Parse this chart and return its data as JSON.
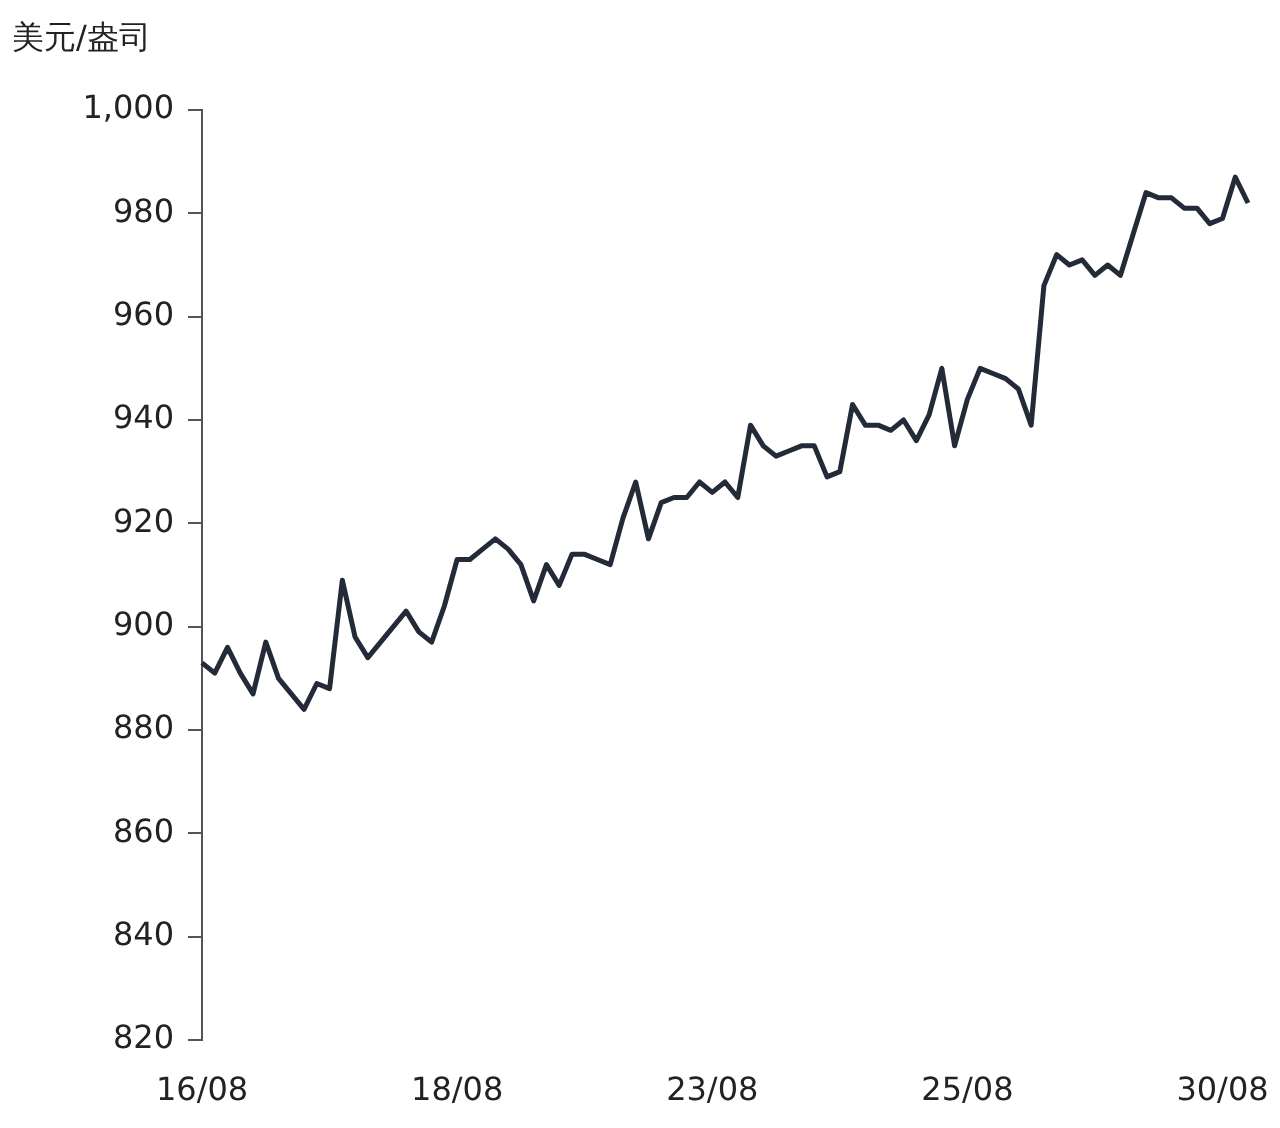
{
  "chart_data": {
    "type": "line",
    "ylabel": "美元/盎司",
    "categories": [
      "16/08",
      null,
      null,
      null,
      null,
      null,
      null,
      null,
      null,
      null,
      null,
      null,
      null,
      null,
      null,
      null,
      null,
      null,
      null,
      null,
      "18/08",
      null,
      null,
      null,
      null,
      null,
      null,
      null,
      null,
      null,
      null,
      null,
      null,
      null,
      null,
      null,
      null,
      null,
      null,
      null,
      "23/08",
      null,
      null,
      null,
      null,
      null,
      null,
      null,
      null,
      null,
      null,
      null,
      null,
      null,
      null,
      null,
      null,
      null,
      null,
      null,
      "25/08",
      null,
      null,
      null,
      null,
      null,
      null,
      null,
      null,
      null,
      null,
      null,
      null,
      null,
      null,
      null,
      null,
      null,
      null,
      null,
      "30/08",
      null,
      null
    ],
    "values": [
      893,
      891,
      896,
      891,
      887,
      897,
      890,
      887,
      884,
      889,
      888,
      909,
      898,
      894,
      897,
      900,
      903,
      899,
      897,
      904,
      913,
      913,
      915,
      917,
      915,
      912,
      905,
      912,
      908,
      914,
      914,
      913,
      912,
      921,
      928,
      917,
      924,
      925,
      925,
      928,
      926,
      928,
      925,
      939,
      935,
      933,
      934,
      935,
      935,
      929,
      930,
      943,
      939,
      939,
      938,
      940,
      936,
      941,
      950,
      935,
      944,
      950,
      949,
      948,
      946,
      939,
      966,
      972,
      970,
      971,
      968,
      970,
      968,
      976,
      984,
      983,
      983,
      981,
      981,
      978,
      979,
      987,
      982
    ],
    "color": "#232a38",
    "ylim": [
      820,
      1000
    ],
    "yticks": [
      820,
      840,
      860,
      880,
      900,
      920,
      940,
      960,
      980,
      {
        "value": 1000,
        "label": "1,000"
      }
    ],
    "grid": false,
    "legend": false
  }
}
